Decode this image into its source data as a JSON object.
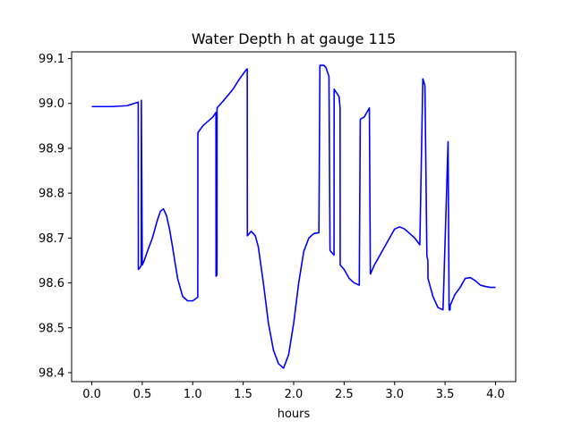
{
  "chart_data": {
    "type": "line",
    "title": "Water Depth h at gauge 115",
    "xlabel": "hours",
    "ylabel": "",
    "xlim": [
      -0.2,
      4.2
    ],
    "ylim": [
      98.38,
      99.115
    ],
    "grid": false,
    "x_ticks": [
      {
        "value": 0.0,
        "label": "0.0"
      },
      {
        "value": 0.5,
        "label": "0.5"
      },
      {
        "value": 1.0,
        "label": "1.0"
      },
      {
        "value": 1.5,
        "label": "1.5"
      },
      {
        "value": 2.0,
        "label": "2.0"
      },
      {
        "value": 2.5,
        "label": "2.5"
      },
      {
        "value": 3.0,
        "label": "3.0"
      },
      {
        "value": 3.5,
        "label": "3.5"
      },
      {
        "value": 4.0,
        "label": "4.0"
      }
    ],
    "y_ticks": [
      {
        "value": 98.4,
        "label": "98.4"
      },
      {
        "value": 98.5,
        "label": "98.5"
      },
      {
        "value": 98.6,
        "label": "98.6"
      },
      {
        "value": 98.7,
        "label": "98.7"
      },
      {
        "value": 98.8,
        "label": "98.8"
      },
      {
        "value": 98.9,
        "label": "98.9"
      },
      {
        "value": 99.0,
        "label": "99.0"
      },
      {
        "value": 99.1,
        "label": "99.1"
      }
    ],
    "series": [
      {
        "color": "#0000ff",
        "x": [
          0.0,
          0.2,
          0.35,
          0.46,
          0.461,
          0.47,
          0.48,
          0.49,
          0.491,
          0.5,
          0.52,
          0.55,
          0.6,
          0.65,
          0.68,
          0.71,
          0.74,
          0.77,
          0.8,
          0.85,
          0.9,
          0.95,
          1.0,
          1.03,
          1.05,
          1.051,
          1.1,
          1.2,
          1.23,
          1.231,
          1.24,
          1.241,
          1.3,
          1.4,
          1.45,
          1.5,
          1.53,
          1.54,
          1.541,
          1.58,
          1.62,
          1.65,
          1.7,
          1.75,
          1.8,
          1.85,
          1.9,
          1.95,
          2.0,
          2.05,
          2.1,
          2.15,
          2.2,
          2.25,
          2.26,
          2.261,
          2.3,
          2.32,
          2.35,
          2.36,
          2.361,
          2.4,
          2.401,
          2.45,
          2.46,
          2.461,
          2.5,
          2.55,
          2.6,
          2.65,
          2.66,
          2.661,
          2.7,
          2.75,
          2.76,
          2.761,
          2.8,
          2.85,
          2.9,
          2.95,
          3.0,
          3.05,
          3.1,
          3.15,
          3.2,
          3.25,
          3.28,
          3.3,
          3.301,
          3.32,
          3.33,
          3.331,
          3.38,
          3.43,
          3.48,
          3.53,
          3.54,
          3.541,
          3.55,
          3.551,
          3.6,
          3.65,
          3.7,
          3.75,
          3.8,
          3.85,
          3.9,
          3.95,
          4.0
        ],
        "y": [
          98.993,
          98.993,
          98.995,
          99.003,
          98.63,
          98.632,
          98.635,
          98.64,
          99.007,
          98.64,
          98.65,
          98.67,
          98.7,
          98.74,
          98.76,
          98.765,
          98.75,
          98.72,
          98.68,
          98.61,
          98.57,
          98.56,
          98.56,
          98.565,
          98.568,
          98.935,
          98.95,
          98.97,
          98.98,
          98.615,
          98.618,
          98.99,
          99.005,
          99.032,
          99.05,
          99.066,
          99.075,
          99.077,
          98.705,
          98.715,
          98.705,
          98.68,
          98.6,
          98.51,
          98.45,
          98.42,
          98.41,
          98.44,
          98.51,
          98.6,
          98.67,
          98.7,
          98.71,
          98.712,
          99.082,
          99.085,
          99.085,
          99.08,
          99.06,
          98.68,
          98.672,
          98.662,
          99.032,
          99.015,
          98.99,
          98.64,
          98.63,
          98.61,
          98.6,
          98.595,
          98.962,
          98.965,
          98.97,
          98.99,
          98.62,
          98.62,
          98.64,
          98.66,
          98.68,
          98.7,
          98.72,
          98.725,
          98.72,
          98.71,
          98.7,
          98.685,
          99.055,
          99.04,
          99.035,
          98.66,
          98.65,
          98.61,
          98.57,
          98.545,
          98.54,
          98.915,
          98.545,
          98.54,
          98.54,
          98.55,
          98.575,
          98.59,
          98.61,
          98.612,
          98.605,
          98.595,
          98.592,
          98.59,
          98.59
        ]
      }
    ]
  }
}
